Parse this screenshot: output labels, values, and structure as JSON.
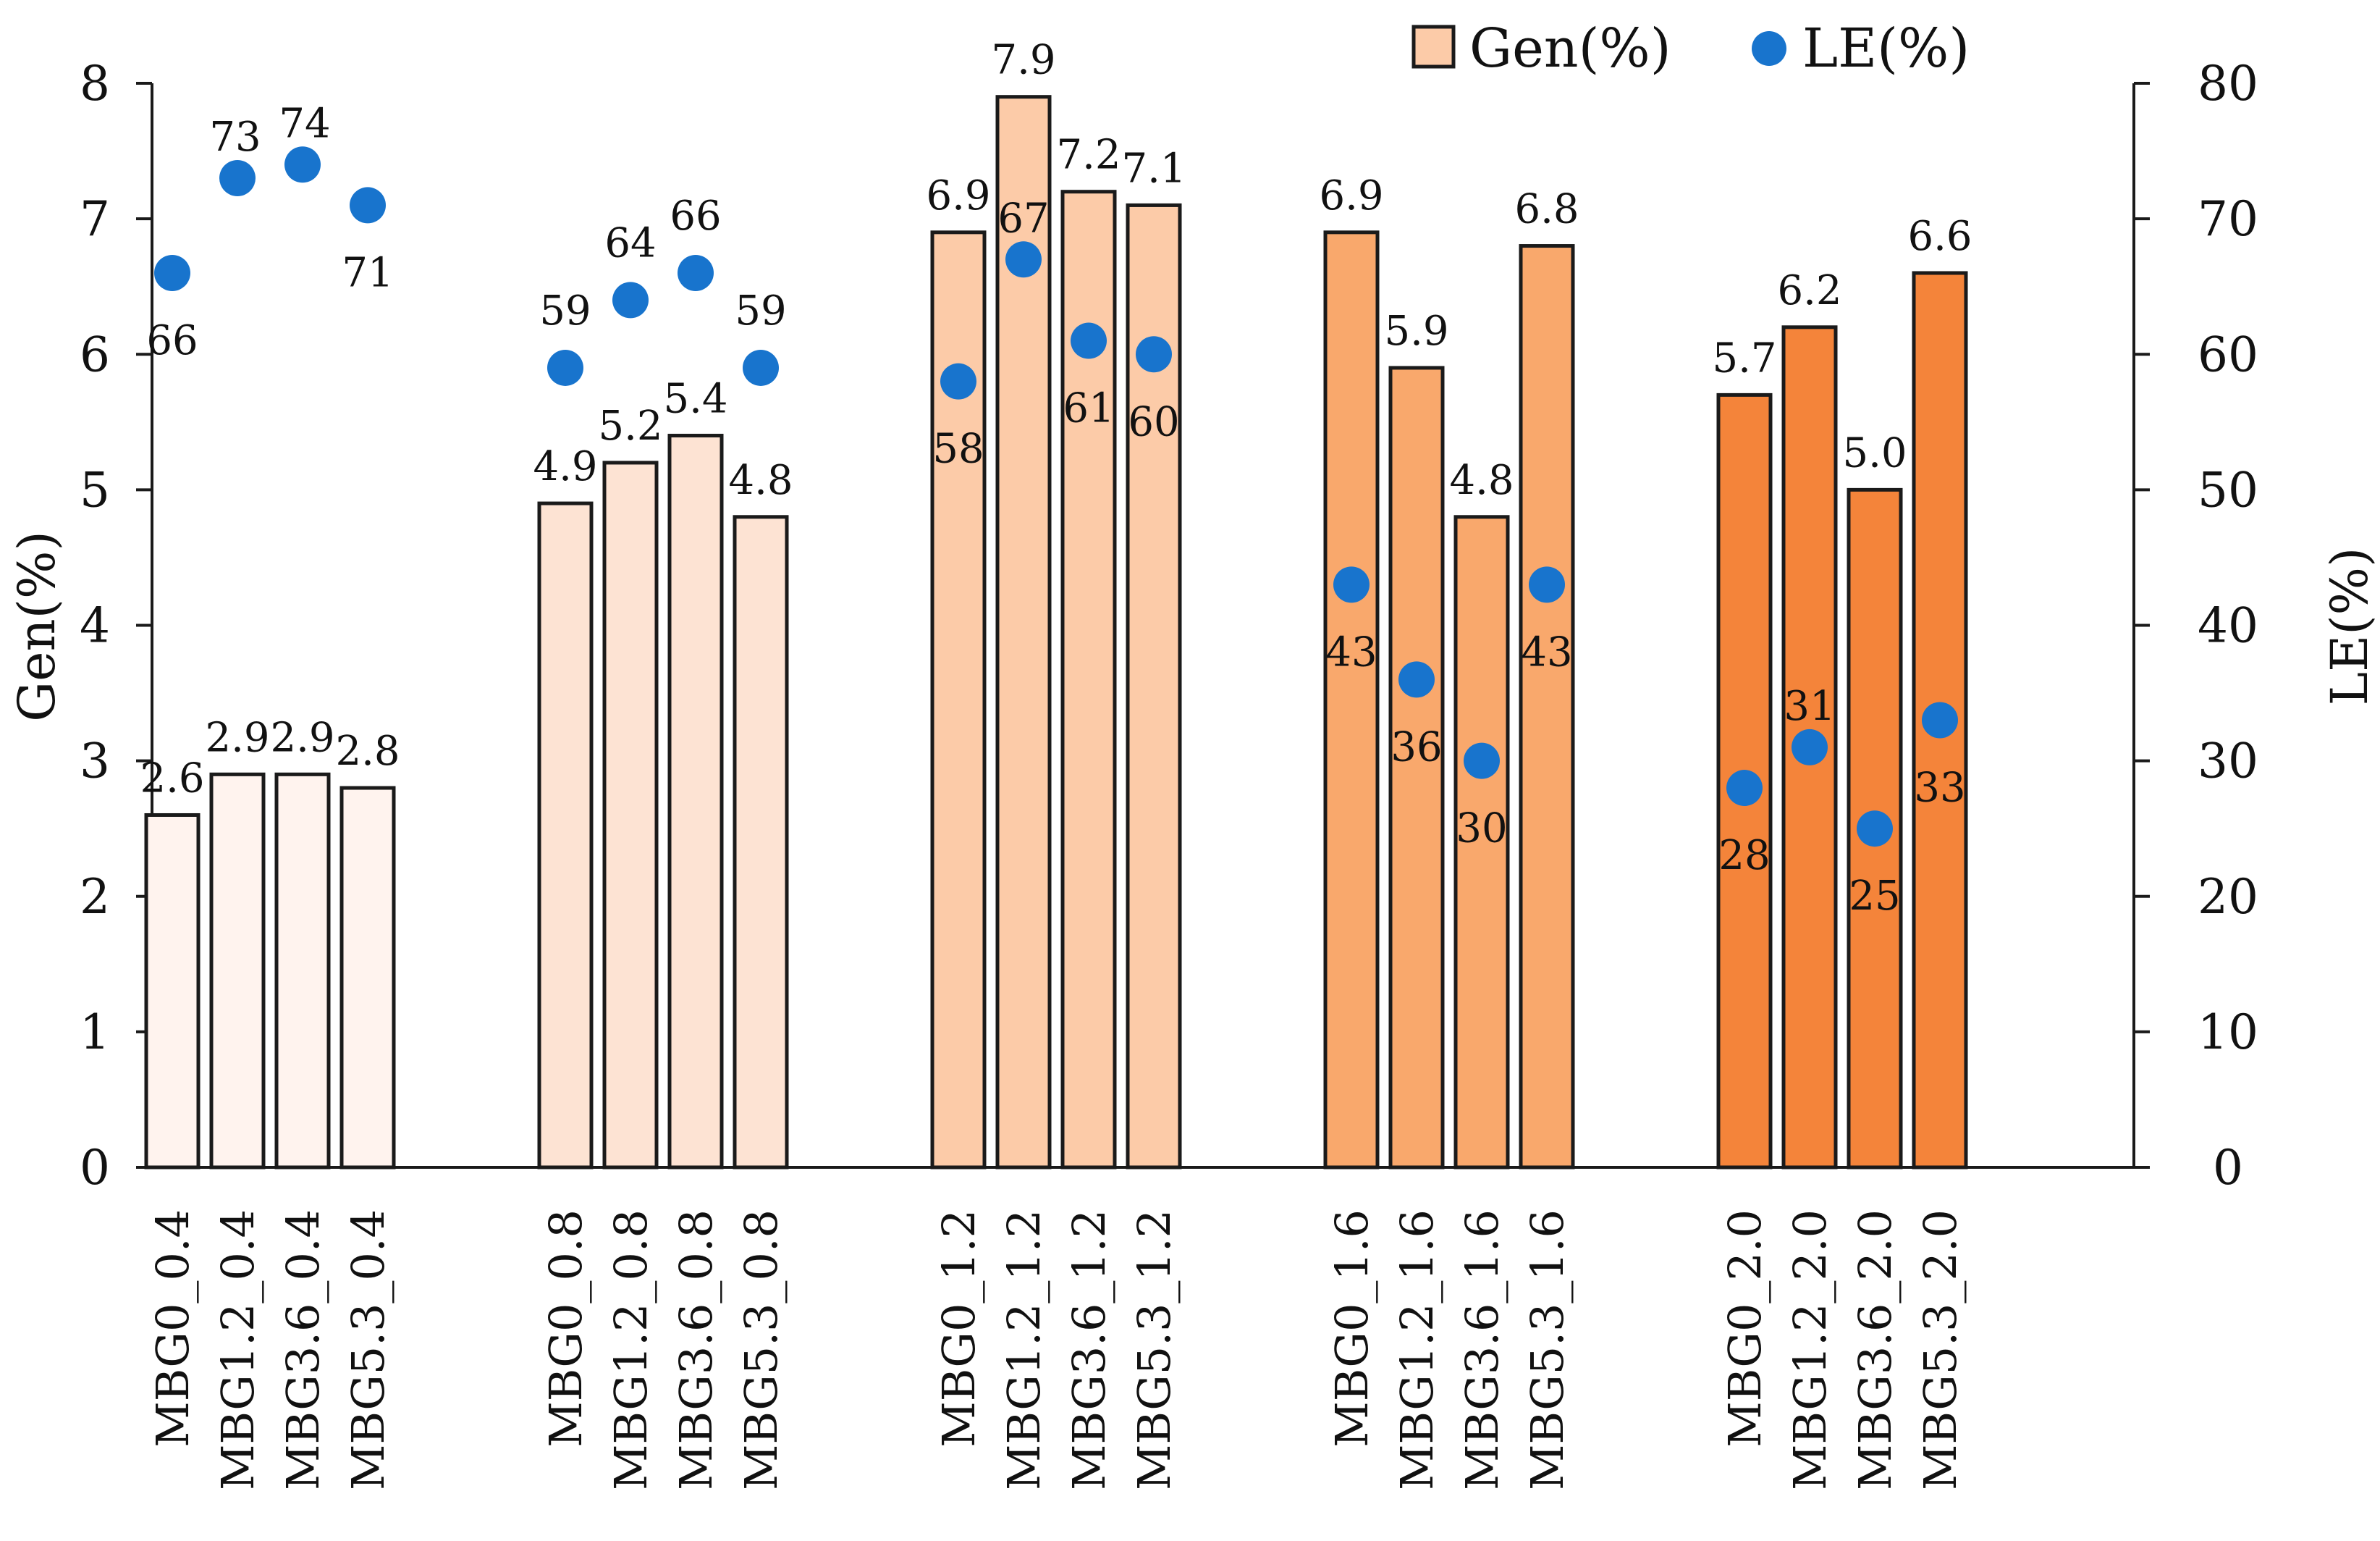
{
  "chart_data": {
    "type": "bar",
    "title": "",
    "xlabel": "",
    "ylabel": "Gen(%)",
    "y2label": "LE(%)",
    "ylim": [
      0,
      8
    ],
    "y2lim": [
      0,
      80
    ],
    "yticks": [
      0,
      1,
      2,
      3,
      4,
      5,
      6,
      7,
      8
    ],
    "y2ticks": [
      0,
      10,
      20,
      30,
      40,
      50,
      60,
      70,
      80
    ],
    "legend": {
      "position": "top-right",
      "entries": [
        "Gen(%)",
        "LE(%)"
      ]
    },
    "groups": [
      {
        "color": "#FFF3EE",
        "categories": [
          "MBG0_0.4",
          "MBG1.2_0.4",
          "MBG3.6_0.4",
          "MBG5.3_0.4"
        ],
        "gen": [
          2.6,
          2.9,
          2.9,
          2.8
        ],
        "gen_labels": [
          "2.6",
          "2.9",
          "2.9",
          "2.8"
        ],
        "le": [
          66,
          73,
          74,
          71
        ]
      },
      {
        "color": "#FDE3D3",
        "categories": [
          "MBG0_0.8",
          "MBG1.2_0.8",
          "MBG3.6_0.8",
          "MBG5.3_0.8"
        ],
        "gen": [
          4.9,
          5.2,
          5.4,
          4.8
        ],
        "gen_labels": [
          "4.9",
          "5.2",
          "5.4",
          "4.8"
        ],
        "le": [
          59,
          64,
          66,
          59
        ]
      },
      {
        "color": "#FCCBA8",
        "categories": [
          "MBG0_1.2",
          "MBG1.2_1.2",
          "MBG3.6_1.2",
          "MBG5.3_1.2"
        ],
        "gen": [
          6.9,
          7.9,
          7.2,
          7.1
        ],
        "gen_labels": [
          "6.9",
          "7.9",
          "7.2",
          "7.1"
        ],
        "le": [
          58,
          67,
          61,
          60
        ]
      },
      {
        "color": "#F9A86C",
        "categories": [
          "MBG0_1.6",
          "MBG1.2_1.6",
          "MBG3.6_1.6",
          "MBG5.3_1.6"
        ],
        "gen": [
          6.9,
          5.9,
          4.8,
          6.8
        ],
        "gen_labels": [
          "6.9",
          "5.9",
          "4.8",
          "6.8"
        ],
        "le": [
          43,
          36,
          30,
          43
        ]
      },
      {
        "color": "#F4843A",
        "categories": [
          "MBG0_2.0",
          "MBG1.2_2.0",
          "MBG3.6_2.0",
          "MBG5.3_2.0"
        ],
        "gen": [
          5.7,
          6.2,
          5.0,
          6.6
        ],
        "gen_labels": [
          "5.7",
          "6.2",
          "5.0",
          "6.6"
        ],
        "le": [
          28,
          31,
          25,
          33
        ]
      }
    ],
    "le_marker_color": "#1874CD",
    "bar_edge_color": "#1a1a1a"
  }
}
